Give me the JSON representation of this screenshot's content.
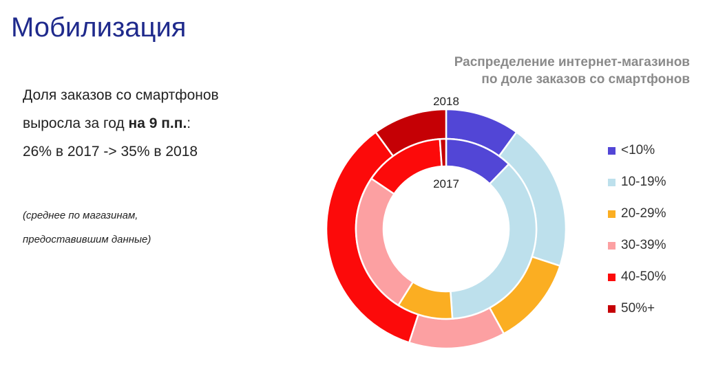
{
  "slide": {
    "title": "Мобилизация",
    "lead_line1": "Доля заказов со смартфонов",
    "lead_line2_prefix": "выросла за год ",
    "lead_line2_bold": "на 9 п.п.",
    "lead_line2_suffix": ":",
    "lead_line3": "26% в 2017 -> 35% в 2018",
    "note_line1": "(среднее по магазинам,",
    "note_line2": "предоставившим данные)"
  },
  "chart_data": {
    "type": "donut",
    "title_line1": "Распределение интернет-магазинов",
    "title_line2": "по доле заказов со смартфонов",
    "categories": [
      "<10%",
      "10-19%",
      "20-29%",
      "30-39%",
      "40-50%",
      "50%+"
    ],
    "colors": [
      "#5246d6",
      "#bde0ec",
      "#fbae22",
      "#fca0a2",
      "#fc0a0a",
      "#c50005"
    ],
    "series": [
      {
        "name": "2018",
        "values": [
          10,
          20,
          12,
          13,
          35,
          10
        ]
      },
      {
        "name": "2017",
        "values": [
          11,
          33,
          9,
          23,
          13,
          1
        ]
      }
    ]
  }
}
